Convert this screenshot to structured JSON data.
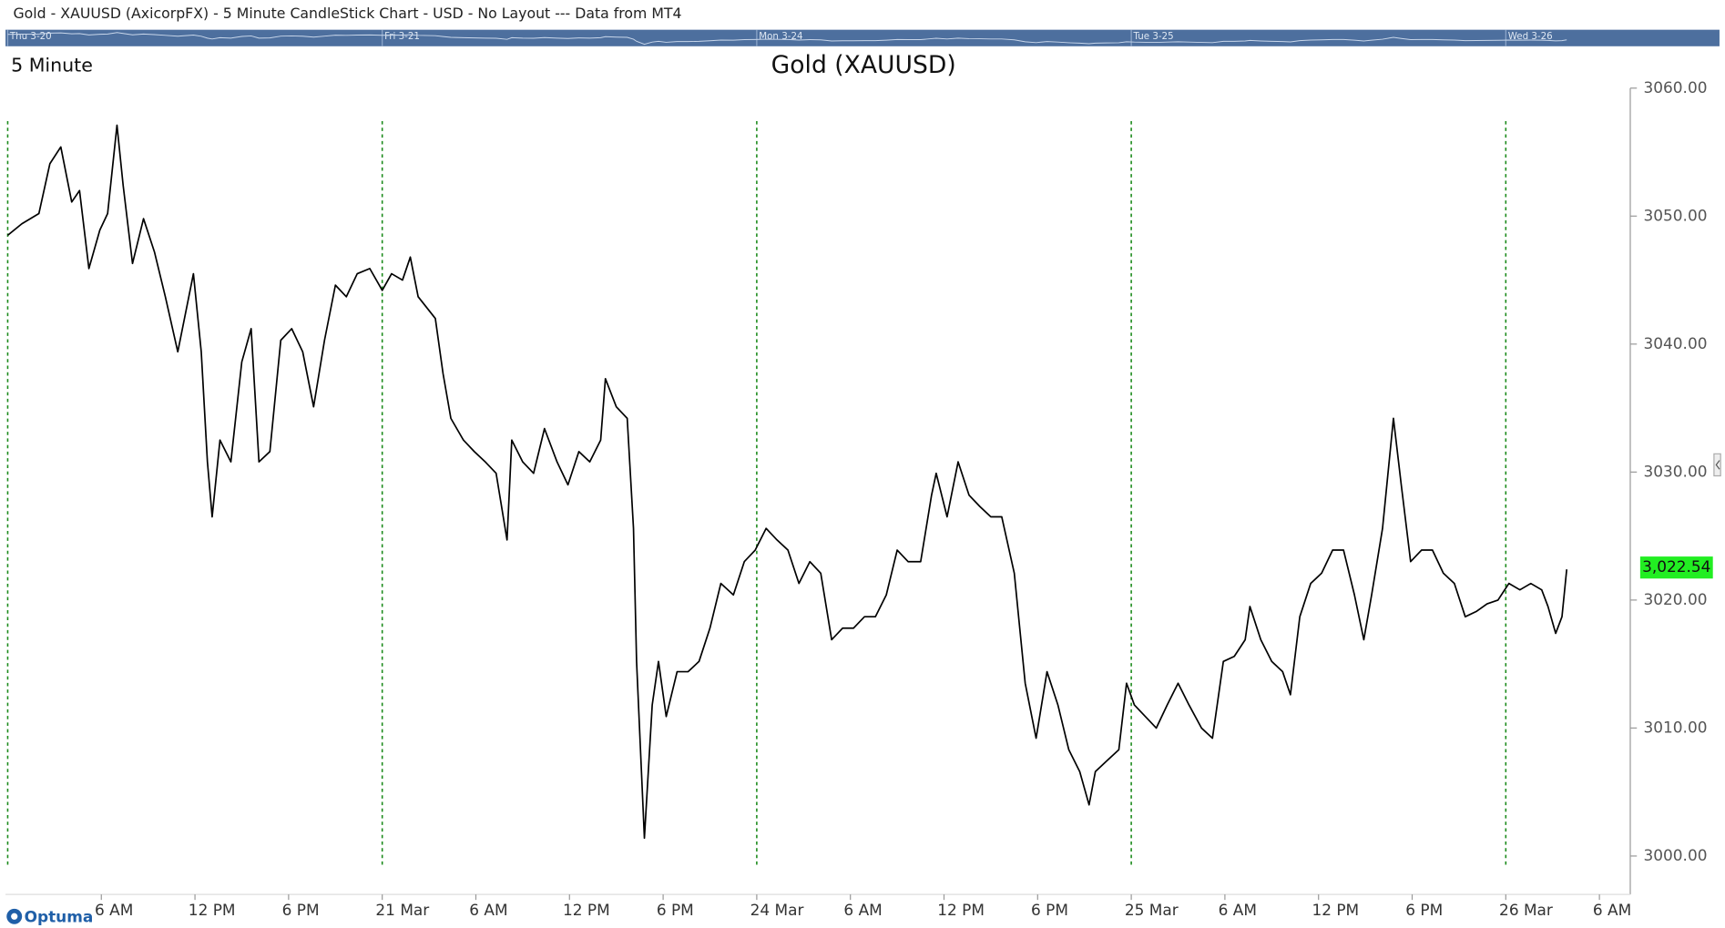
{
  "window_title": "Gold - XAUUSD (AxicorpFX) - 5 Minute CandleStick Chart - USD - No Layout --- Data from MT4",
  "navigator": {
    "labels": [
      "Thu 3-20",
      "Fri 3-21",
      "Mon 3-24",
      "Tue 3-25",
      "Wed 3-26"
    ],
    "positions": [
      0,
      24,
      48,
      72,
      96
    ]
  },
  "timeframe": "5 Minute",
  "logo": "Optuma",
  "chart_data": {
    "type": "line",
    "title": "Gold (XAUUSD)",
    "color": "#000000",
    "x": [
      0,
      0.9,
      2.0,
      2.7,
      3.4,
      4.1,
      4.6,
      5.2,
      5.9,
      6.4,
      7.0,
      7.4,
      8.0,
      8.7,
      9.4,
      10.1,
      10.9,
      11.9,
      12.4,
      12.8,
      13.1,
      13.6,
      14.3,
      15.0,
      15.6,
      16.1,
      16.8,
      17.5,
      18.2,
      18.9,
      19.6,
      20.3,
      21.0,
      21.7,
      22.4,
      23.2,
      24.0,
      24.6,
      25.3,
      25.8,
      26.3,
      27.4,
      27.9,
      28.4,
      29.2,
      29.9,
      30.6,
      31.3,
      32.0,
      32.3,
      33.0,
      33.7,
      34.4,
      35.2,
      35.9,
      36.6,
      37.3,
      38.0,
      38.3,
      39.0,
      39.7,
      40.1,
      40.3,
      40.8,
      41.3,
      41.7,
      42.2,
      42.9,
      43.6,
      44.3,
      45.0,
      45.7,
      46.5,
      47.2,
      47.9,
      48.6,
      49.3,
      50.0,
      50.7,
      51.4,
      52.1,
      52.8,
      53.5,
      54.2,
      54.9,
      55.6,
      56.3,
      57.0,
      57.7,
      58.5,
      59.2,
      59.5,
      60.2,
      60.9,
      61.6,
      62.3,
      63.0,
      63.7,
      64.5,
      65.2,
      65.9,
      66.6,
      67.3,
      68.0,
      68.7,
      69.3,
      69.7,
      70.4,
      71.2,
      71.7,
      72.2,
      72.9,
      73.6,
      74.3,
      75.0,
      75.7,
      76.5,
      77.2,
      77.9,
      78.6,
      79.3,
      79.6,
      80.3,
      81.0,
      81.7,
      82.2,
      82.8,
      83.5,
      84.2,
      84.9,
      85.6,
      86.3,
      86.9,
      87.4,
      88.1,
      88.8,
      89.3,
      89.9,
      90.6,
      91.3,
      92.0,
      92.7,
      93.4,
      94.1,
      94.8,
      95.5,
      96.2,
      96.9,
      97.6,
      98.3,
      98.7,
      99.2,
      99.6,
      99.9
    ],
    "values": [
      3048.5,
      3049.4,
      3050.2,
      3054.1,
      3055.4,
      3051.1,
      3052.0,
      3045.9,
      3048.9,
      3050.2,
      3057.1,
      3052.4,
      3046.3,
      3049.8,
      3047.2,
      3043.7,
      3039.4,
      3045.5,
      3039.4,
      3030.8,
      3026.5,
      3032.5,
      3030.8,
      3038.6,
      3041.2,
      3030.8,
      3031.6,
      3040.3,
      3041.2,
      3039.4,
      3035.1,
      3040.3,
      3044.6,
      3043.7,
      3045.5,
      3045.9,
      3044.2,
      3045.5,
      3045.0,
      3046.8,
      3043.7,
      3042.0,
      3037.7,
      3034.2,
      3032.5,
      3031.6,
      3030.8,
      3029.9,
      3024.7,
      3032.5,
      3030.8,
      3029.9,
      3033.4,
      3030.8,
      3029.0,
      3031.6,
      3030.8,
      3032.5,
      3037.3,
      3035.1,
      3034.2,
      3025.6,
      3015.2,
      3001.4,
      3011.8,
      3015.2,
      3010.9,
      3014.4,
      3014.4,
      3015.2,
      3017.8,
      3021.3,
      3020.4,
      3023.0,
      3023.9,
      3025.6,
      3024.7,
      3023.9,
      3021.3,
      3023.0,
      3022.1,
      3016.9,
      3017.8,
      3017.8,
      3018.7,
      3018.7,
      3020.4,
      3023.9,
      3023.0,
      3023.0,
      3028.2,
      3029.9,
      3026.5,
      3030.8,
      3028.2,
      3027.3,
      3026.5,
      3026.5,
      3022.1,
      3013.5,
      3009.2,
      3014.4,
      3011.8,
      3008.3,
      3006.6,
      3004.0,
      3006.6,
      3007.4,
      3008.3,
      3013.5,
      3011.8,
      3010.9,
      3010.0,
      3011.8,
      3013.5,
      3011.8,
      3010.0,
      3009.2,
      3015.2,
      3015.6,
      3016.9,
      3019.5,
      3016.9,
      3015.2,
      3014.4,
      3012.6,
      3018.7,
      3021.3,
      3022.1,
      3023.9,
      3023.9,
      3020.4,
      3016.9,
      3020.4,
      3025.6,
      3034.2,
      3029.0,
      3023.0,
      3023.9,
      3023.9,
      3022.1,
      3021.3,
      3018.7,
      3019.1,
      3019.7,
      3020.0,
      3021.3,
      3020.8,
      3021.3,
      3020.8,
      3019.5,
      3017.4,
      3018.7,
      3022.4
    ],
    "last_price": {
      "value": 3022.54,
      "label": "3,022.54"
    },
    "xlim": [
      0,
      104
    ],
    "xticks": [
      {
        "value": 6,
        "label": "6 AM"
      },
      {
        "value": 12,
        "label": "12 PM"
      },
      {
        "value": 18,
        "label": "6 PM"
      },
      {
        "value": 24,
        "label": "21 Mar"
      },
      {
        "value": 30,
        "label": "6 AM"
      },
      {
        "value": 36,
        "label": "12 PM"
      },
      {
        "value": 42,
        "label": "6 PM"
      },
      {
        "value": 48,
        "label": "24 Mar"
      },
      {
        "value": 54,
        "label": "6 AM"
      },
      {
        "value": 60,
        "label": "12 PM"
      },
      {
        "value": 66,
        "label": "6 PM"
      },
      {
        "value": 72,
        "label": "25 Mar"
      },
      {
        "value": 78,
        "label": "6 AM"
      },
      {
        "value": 84,
        "label": "12 PM"
      },
      {
        "value": 90,
        "label": "6 PM"
      },
      {
        "value": 96,
        "label": "26 Mar"
      },
      {
        "value": 102,
        "label": "6 AM"
      }
    ],
    "day_separators": [
      0,
      24,
      48,
      72,
      96
    ],
    "separator_color": "#1a8a1a",
    "ylim": [
      2997,
      3060
    ],
    "yticks": [
      {
        "value": 3000,
        "label": "3000.00"
      },
      {
        "value": 3010,
        "label": "3010.00"
      },
      {
        "value": 3020,
        "label": "3020.00"
      },
      {
        "value": 3030,
        "label": "3030.00"
      },
      {
        "value": 3040,
        "label": "3040.00"
      },
      {
        "value": 3050,
        "label": "3050.00"
      },
      {
        "value": 3060,
        "label": "3060.00"
      }
    ]
  }
}
